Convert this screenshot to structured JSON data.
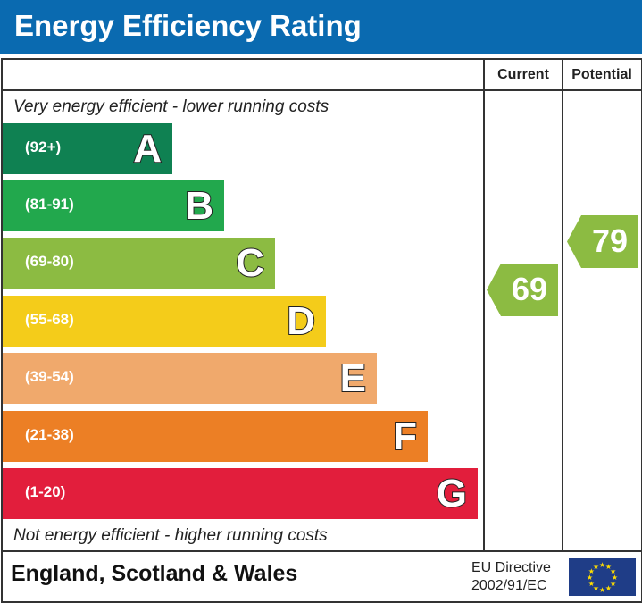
{
  "chart_data": {
    "type": "bar",
    "title": "Energy Efficiency Rating",
    "columns": [
      "Current",
      "Potential"
    ],
    "top_note": "Very energy efficient - lower running costs",
    "bottom_note": "Not energy efficient - higher running costs",
    "bands": [
      {
        "letter": "A",
        "range": "(92+)",
        "color": "#0f8152"
      },
      {
        "letter": "B",
        "range": "(81-91)",
        "color": "#22a84d"
      },
      {
        "letter": "C",
        "range": "(69-80)",
        "color": "#8cbb42"
      },
      {
        "letter": "D",
        "range": "(55-68)",
        "color": "#f4cc1a"
      },
      {
        "letter": "E",
        "range": "(39-54)",
        "color": "#f0a96c"
      },
      {
        "letter": "F",
        "range": "(21-38)",
        "color": "#ec7f25"
      },
      {
        "letter": "G",
        "range": "(1-20)",
        "color": "#e21e3c"
      }
    ],
    "current": {
      "value": "69",
      "band": "C",
      "color": "#8cbb42"
    },
    "potential": {
      "value": "79",
      "band": "C",
      "color": "#8cbb42"
    },
    "region": "England, Scotland & Wales",
    "directive_line1": "EU Directive",
    "directive_line2": "2002/91/EC"
  }
}
